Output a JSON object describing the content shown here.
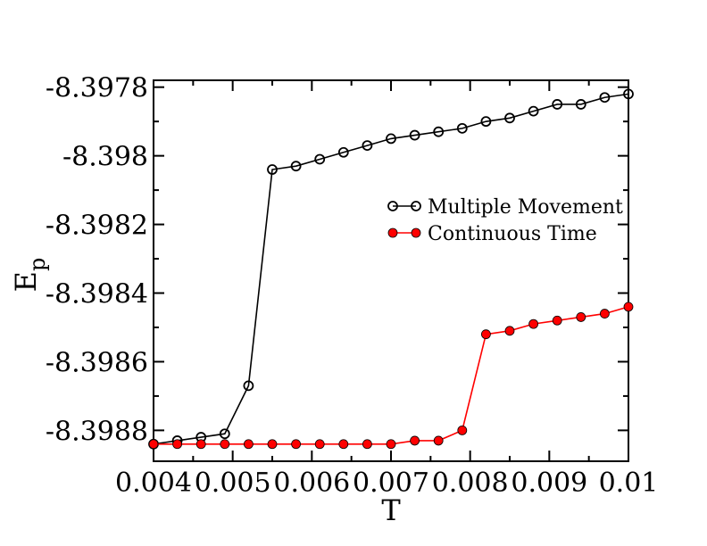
{
  "chart_data": {
    "type": "line",
    "title": "",
    "xlabel": "T",
    "ylabel_main": "E",
    "ylabel_sub": "p",
    "xlim": [
      0.004,
      0.01
    ],
    "ylim": [
      -8.39889,
      -8.39778
    ],
    "x_ticks": [
      0.004,
      0.005,
      0.006,
      0.007,
      0.008,
      0.009,
      0.01
    ],
    "x_tick_labels": [
      "0.004",
      "0.005",
      "0.006",
      "0.007",
      "0.008",
      "0.009",
      "0.01"
    ],
    "y_ticks": [
      -8.3978,
      -8.398,
      -8.3982,
      -8.3984,
      -8.3986,
      -8.3988
    ],
    "y_tick_labels": [
      "-8.3978",
      "-8.398",
      "-8.3982",
      "-8.3984",
      "-8.3986",
      "-8.3988"
    ],
    "grid": false,
    "legend_position": "center-right",
    "series": [
      {
        "name": "Multiple Movement",
        "color": "#000000",
        "marker": "open-circle",
        "x": [
          0.004,
          0.0043,
          0.0046,
          0.0049,
          0.0052,
          0.0055,
          0.0058,
          0.0061,
          0.0064,
          0.0067,
          0.007,
          0.0073,
          0.0076,
          0.0079,
          0.0082,
          0.0085,
          0.0088,
          0.0091,
          0.0094,
          0.0097,
          0.01
        ],
        "values": [
          -8.39884,
          -8.39883,
          -8.39882,
          -8.39881,
          -8.39867,
          -8.39804,
          -8.39803,
          -8.39801,
          -8.39799,
          -8.39797,
          -8.39795,
          -8.39794,
          -8.39793,
          -8.39792,
          -8.3979,
          -8.39789,
          -8.39787,
          -8.39785,
          -8.39785,
          -8.39783,
          -8.39782
        ]
      },
      {
        "name": "Continuous Time",
        "color": "#ff0000",
        "marker": "filled-circle",
        "x": [
          0.004,
          0.0043,
          0.0046,
          0.0049,
          0.0052,
          0.0055,
          0.0058,
          0.0061,
          0.0064,
          0.0067,
          0.007,
          0.0073,
          0.0076,
          0.0079,
          0.0082,
          0.0085,
          0.0088,
          0.0091,
          0.0094,
          0.0097,
          0.01
        ],
        "values": [
          -8.39884,
          -8.39884,
          -8.39884,
          -8.39884,
          -8.39884,
          -8.39884,
          -8.39884,
          -8.39884,
          -8.39884,
          -8.39884,
          -8.39884,
          -8.39883,
          -8.39883,
          -8.3988,
          -8.39852,
          -8.39851,
          -8.39849,
          -8.39848,
          -8.39847,
          -8.39846,
          -8.39844
        ]
      }
    ]
  }
}
